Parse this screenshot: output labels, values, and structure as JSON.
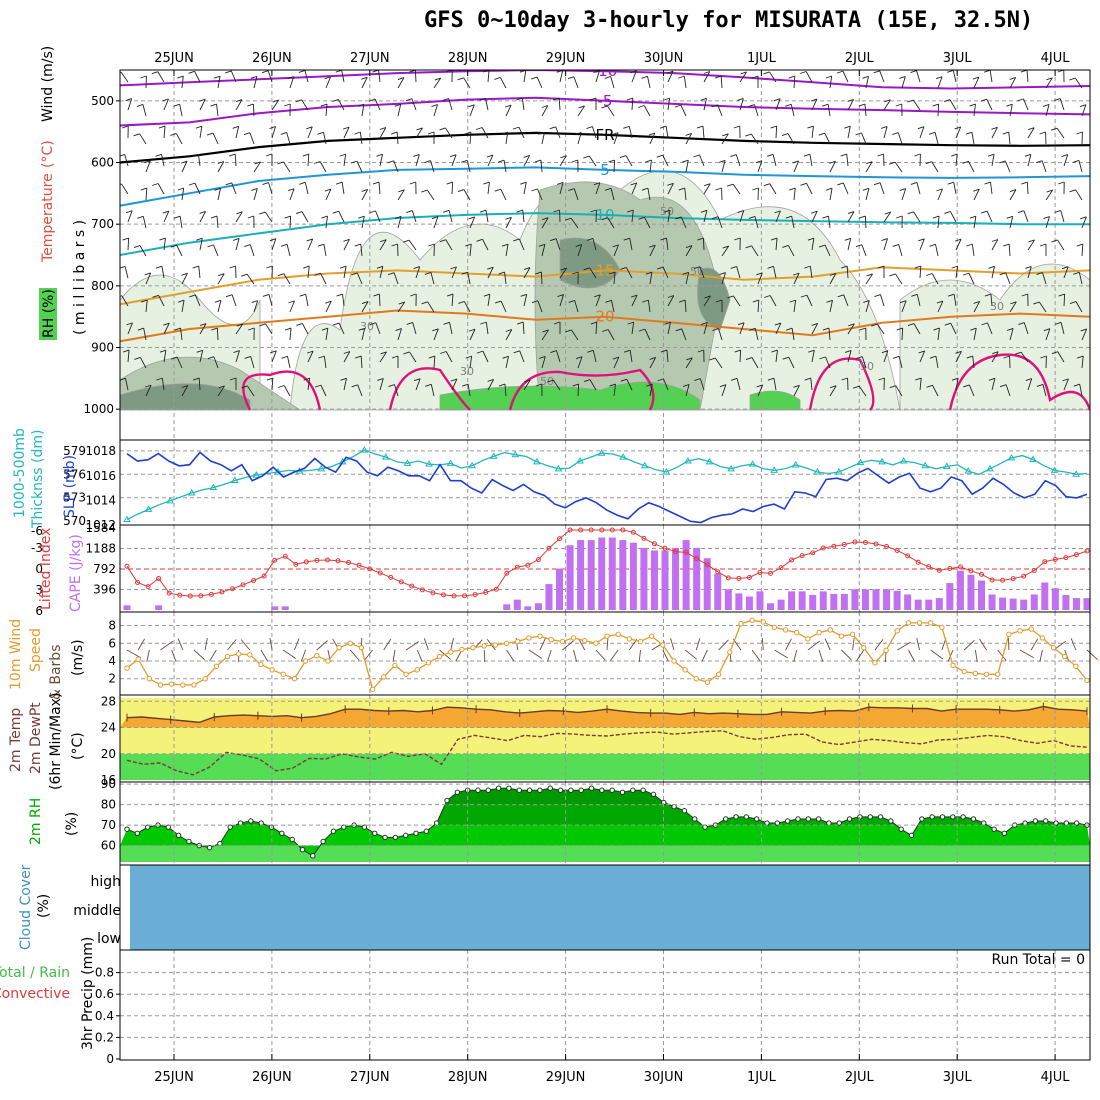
{
  "title": "GFS 0~10day 3-hourly for MISURATA (15E, 32.5N)",
  "dates": [
    "25JUN",
    "26JUN",
    "27JUN",
    "28JUN",
    "29JUN",
    "30JUN",
    "1JUL",
    "2JUL",
    "3JUL",
    "4JUL"
  ],
  "panel_labels": {
    "p1_rh": "RH (%)",
    "p1_temp": "Temperature",
    "p1_tempunit": "(°C)",
    "p1_wind": "Wind (m/s)",
    "p1_mb": "( m i l l i b a r s )",
    "p2_thick": "1000-500mb",
    "p2_thick2": "Thicknss (dm)",
    "p2_slp": "SLP (mb)",
    "p3_li": "Lifted Index",
    "p3_cape": "CAPE (J/kg)",
    "p4_a": "10m Wind",
    "p4_b": "Speed",
    "p4_c": "& Barbs",
    "p4_unit": "(m/s)",
    "p5_a": "2m Temp",
    "p5_b": "2m DewPt",
    "p5_c": "(6hr Min/Max)",
    "p5_unit": "(°C)",
    "p6_a": "2m RH",
    "p6_unit": "(%)",
    "p7_a": "Cloud Cover",
    "p7_unit": "(%)",
    "p7_high": "high",
    "p7_mid": "middle",
    "p7_low": "low",
    "p8_a": "Total / Rain",
    "p8_b": "Convective",
    "p8_c": "3hr Precip (mm)",
    "run_total": "Run Total = 0"
  },
  "contour_labels": {
    "m10": "-10",
    "m5": "-5",
    "fr": "FR",
    "p5": "5",
    "p10": "10",
    "p15": "15",
    "p20": "20",
    "rh30": "30",
    "rh50": "50"
  },
  "colors": {
    "grid": "#9a9a9a",
    "purple": "#9a18c8",
    "black": "#000000",
    "blue": "#1e96d8",
    "cyan": "#17b0b8",
    "orange_light": "#e0a02a",
    "orange": "#e07a1a",
    "magenta": "#e0107a",
    "rh_light": "#e6f1e2",
    "rh_mid": "#b5c9b1",
    "rh_dark": "#7f9a83",
    "rh_green": "#52d152",
    "slp": "#1d3fd0",
    "thick": "#22b8b8",
    "li": "#e03a3a",
    "cape": "#c070f0",
    "wind": "#e69a2a",
    "barb": "#6a4a3a",
    "temp_fill": "#f4a733",
    "yellow": "#f5f27a",
    "green": "#55dd55",
    "dewline": "#7a3a3a",
    "rh2m_dark": "#009a00",
    "rh2m_mid": "#00c800",
    "rh2m_light": "#55dd55",
    "cloud": "#6aaed6"
  },
  "chart_data": [
    {
      "type": "contour",
      "name": "pressure-level temperature / RH / wind",
      "ylabel": "Temperature (°C) Wind (m/s) RH (%) (millibars)",
      "y_ticks": [
        500,
        600,
        700,
        800,
        900,
        1000
      ],
      "ylim": [
        450,
        1050
      ],
      "contour_levels_temperature": [
        -10,
        -5,
        0,
        5,
        10,
        15,
        20,
        25
      ],
      "contour_levels_rh": [
        30,
        50,
        70,
        90
      ],
      "freezing_level_label": "FR"
    },
    {
      "type": "line",
      "series_left": "Thicknss (dm)",
      "series_right": "SLP (mb)",
      "y_left_ticks": [
        570,
        573,
        576,
        579
      ],
      "y_right_ticks": [
        1012,
        1014,
        1016,
        1018
      ],
      "thickness": [
        570.2,
        570.9,
        571.5,
        572.1,
        572.6,
        573.1,
        573.6,
        574.0,
        574.3,
        574.7,
        575.2,
        575.6,
        575.9,
        576.1,
        576.3,
        576.5,
        576.4,
        576.5,
        576.7,
        577.0,
        577.6,
        578.3,
        579.1,
        578.6,
        578.2,
        577.6,
        577.4,
        577.7,
        577.3,
        577.2,
        577.4,
        576.8,
        577.1,
        577.8,
        578.3,
        578.8,
        578.5,
        578.3,
        577.6,
        577.1,
        576.7,
        576.8,
        577.7,
        578.2,
        578.7,
        578.6,
        578.2,
        577.6,
        577.1,
        576.6,
        576.3,
        576.9,
        577.7,
        578.0,
        577.6,
        577.0,
        576.7,
        577.1,
        577.3,
        576.7,
        576.5,
        576.7,
        577.2,
        576.8,
        576.3,
        576.1,
        576.3,
        576.9,
        577.5,
        577.8,
        577.6,
        577.2,
        577.7,
        577.5,
        577.1,
        576.7,
        577.0,
        577.2,
        576.4,
        576.0,
        576.7,
        577.4,
        578.1,
        578.4,
        577.9,
        577.1,
        576.5,
        576.3,
        576.0,
        576.1
      ],
      "slp": [
        1017.8,
        1017.2,
        1017.3,
        1017.8,
        1017.2,
        1016.8,
        1016.9,
        1017.9,
        1017.2,
        1016.9,
        1016.4,
        1016.9,
        1015.6,
        1016.0,
        1016.7,
        1015.9,
        1016.3,
        1016.6,
        1017.4,
        1016.7,
        1016.3,
        1017.5,
        1017.2,
        1016.3,
        1016.0,
        1016.7,
        1016.4,
        1016.0,
        1016.0,
        1015.6,
        1016.9,
        1015.6,
        1015.6,
        1015.0,
        1014.6,
        1015.7,
        1015.2,
        1014.8,
        1015.3,
        1014.7,
        1014.4,
        1013.7,
        1013.4,
        1013.9,
        1014.2,
        1013.8,
        1013.2,
        1012.8,
        1012.5,
        1013.3,
        1013.8,
        1013.5,
        1013.1,
        1012.7,
        1012.3,
        1012.2,
        1012.6,
        1012.8,
        1012.9,
        1013.3,
        1013.1,
        1013.5,
        1013.7,
        1013.3,
        1014.7,
        1014.6,
        1014.3,
        1015.7,
        1015.8,
        1015.6,
        1016.2,
        1016.6,
        1016.0,
        1015.4,
        1015.9,
        1016.2,
        1015.0,
        1014.7,
        1015.0,
        1015.9,
        1015.6,
        1014.5,
        1015.0,
        1015.8,
        1015.3,
        1014.6,
        1014.2,
        1014.5,
        1015.6,
        1015.2,
        1014.3,
        1014.2,
        1014.5
      ]
    },
    {
      "type": "bar",
      "series_left": "Lifted Index",
      "series_right": "CAPE (J/kg)",
      "y_left_ticks": [
        -3,
        0,
        3,
        6
      ],
      "y_left_extra": [
        "-6"
      ],
      "y_right_ticks": [
        396,
        792,
        1188,
        1584
      ],
      "cape": [
        90,
        0,
        0,
        90,
        0,
        0,
        0,
        0,
        0,
        0,
        0,
        0,
        0,
        0,
        70,
        70,
        0,
        0,
        0,
        0,
        0,
        0,
        0,
        0,
        0,
        0,
        0,
        0,
        0,
        0,
        0,
        0,
        0,
        0,
        0,
        0,
        110,
        200,
        70,
        130,
        500,
        800,
        1250,
        1350,
        1350,
        1400,
        1400,
        1350,
        1300,
        1200,
        1150,
        1150,
        1200,
        1350,
        1200,
        1000,
        700,
        400,
        320,
        260,
        360,
        130,
        200,
        360,
        360,
        290,
        360,
        310,
        310,
        400,
        400,
        400,
        400,
        370,
        300,
        200,
        200,
        230,
        520,
        760,
        680,
        570,
        300,
        240,
        220,
        200,
        300,
        530,
        420,
        290,
        230,
        230
      ]
    },
    {
      "type": "line",
      "name": "10m wind speed",
      "ylabel": "10m Wind Speed & Barbs (m/s)",
      "y_ticks": [
        2,
        4,
        6,
        8
      ],
      "values": [
        3.2,
        4.2,
        2.0,
        1.3,
        1.4,
        1.3,
        1.3,
        2.0,
        3.4,
        4.5,
        4.8,
        4.7,
        3.6,
        3.0,
        2.5,
        2.0,
        4.0,
        4.6,
        4.0,
        5.5,
        6.0,
        5.5,
        0.8,
        2.2,
        3.5,
        2.5,
        3.0,
        3.8,
        4.5,
        5.0,
        5.3,
        5.5,
        5.7,
        5.8,
        6.0,
        6.2,
        6.6,
        6.8,
        6.4,
        6.2,
        6.6,
        6.3,
        6.0,
        6.8,
        7.0,
        6.5,
        6.2,
        6.8,
        5.8,
        4.0,
        3.0,
        2.0,
        1.6,
        2.5,
        5.0,
        8.2,
        8.6,
        8.4,
        7.8,
        7.5,
        7.2,
        6.5,
        7.2,
        7.5,
        6.8,
        7.0,
        5.5,
        3.8,
        5.2,
        7.4,
        8.3,
        8.3,
        8.3,
        7.8,
        3.5,
        2.8,
        2.6,
        2.5,
        2.5,
        7.0,
        7.4,
        7.6,
        6.6,
        5.5,
        4.5,
        3.4,
        1.8
      ]
    },
    {
      "type": "line",
      "name": "2m temperature / dewpoint",
      "ylabel": "2m Temp 2m DewPt (6hr Min/Max) (°C)",
      "y_ticks": [
        16,
        20,
        24,
        28
      ],
      "temp": [
        25.5,
        25.6,
        25.4,
        25.2,
        25.0,
        24.8,
        25.6,
        25.8,
        25.9,
        25.8,
        25.7,
        25.8,
        25.5,
        25.7,
        26.1,
        26.8,
        26.8,
        26.6,
        26.5,
        26.6,
        26.4,
        26.6,
        27.1,
        27.0,
        26.8,
        26.7,
        26.4,
        26.2,
        26.4,
        26.6,
        26.5,
        26.3,
        26.5,
        26.8,
        26.5,
        26.3,
        26.2,
        26.2,
        26.0,
        26.3,
        26.1,
        26.2,
        26.1,
        26.0,
        26.0,
        26.4,
        26.3,
        26.2,
        26.5,
        26.6,
        26.5,
        27.1,
        27.0,
        27.0,
        26.9,
        26.9,
        26.5,
        26.8,
        26.8,
        26.8,
        26.7,
        26.5,
        26.7,
        27.2,
        26.8,
        26.7,
        26.5
      ],
      "dewpoint": [
        19.0,
        18.4,
        18.6,
        17.4,
        16.8,
        18.0,
        20.2,
        19.8,
        19.2,
        17.4,
        17.8,
        19.3,
        19.2,
        20.0,
        19.5,
        19.2,
        20.2,
        19.6,
        20.0,
        18.4,
        22.2,
        22.8,
        22.4,
        22.0,
        22.8,
        22.6,
        23.1,
        23.0,
        22.8,
        22.7,
        23.0,
        23.2,
        23.3,
        23.0,
        23.2,
        23.4,
        23.5,
        22.6,
        22.2,
        22.5,
        22.9,
        23.0,
        21.8,
        21.4,
        21.8,
        22.2,
        22.0,
        21.7,
        21.5,
        22.1,
        22.2,
        22.5,
        22.8,
        22.6,
        22.0,
        21.6,
        22.0,
        21.2,
        21.0
      ]
    },
    {
      "type": "area",
      "name": "2m RH",
      "ylabel": "2m RH (%)",
      "y_ticks": [
        60,
        70,
        80,
        90
      ],
      "values": [
        68,
        66,
        69,
        70,
        69,
        65,
        62,
        60,
        59,
        61,
        69,
        71,
        72,
        71,
        69,
        66,
        63,
        58,
        55,
        62,
        67,
        69,
        70,
        69,
        66,
        64,
        64,
        65,
        66,
        67,
        71,
        82,
        86,
        87,
        87,
        87,
        88,
        88,
        87,
        87,
        87,
        88,
        87,
        87,
        87,
        88,
        87,
        87,
        86,
        87,
        87,
        85,
        81,
        79,
        77,
        73,
        69,
        70,
        73,
        74,
        74,
        73,
        71,
        71,
        72,
        73,
        73,
        73,
        71,
        71,
        73,
        74,
        74,
        74,
        72,
        68,
        65,
        73,
        74,
        74,
        74,
        74,
        73,
        71,
        68,
        66,
        70,
        71,
        72,
        72,
        71,
        71,
        71,
        70
      ]
    },
    {
      "type": "area",
      "name": "Cloud Cover",
      "ylabel": "Cloud Cover (%)",
      "categories": [
        "high",
        "middle",
        "low"
      ]
    },
    {
      "type": "bar",
      "name": "3hr Precip",
      "ylabel": "3hr Precip (mm)",
      "y_ticks": [
        0,
        0.2,
        0.4,
        0.6,
        0.8
      ],
      "ylim": [
        0,
        1
      ],
      "run_total": "Run Total = 0",
      "values": []
    }
  ]
}
